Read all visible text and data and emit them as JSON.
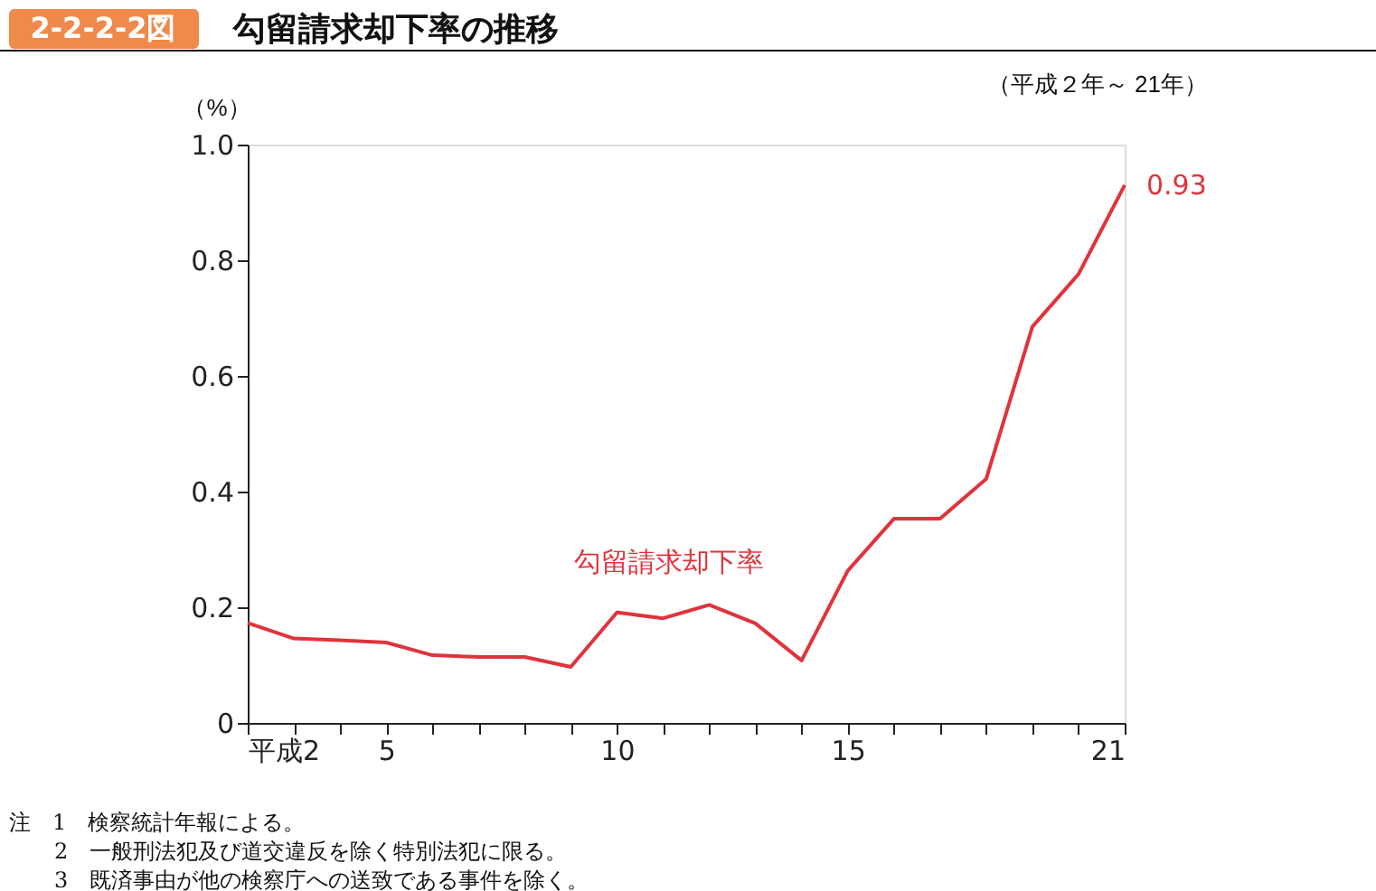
{
  "chart_data": {
    "type": "line",
    "title": "勾留請求却下率の推移",
    "subtitle": "（平成２年～ 21年）",
    "ylabel": "（%）",
    "annotations": [
      "2-2-2-2図",
      "注　1　検察統計年報による。",
      "2　一般刑法犯及び道交違反を除く特別法犯に限る。",
      "3　既済事由が他の検察庁への送致である事件を除く。"
    ],
    "x": [
      2,
      3,
      4,
      5,
      6,
      7,
      8,
      9,
      10,
      11,
      12,
      13,
      14,
      15,
      16,
      17,
      18,
      19,
      20,
      21
    ],
    "series": [
      {
        "name": "勾留請求却下率",
        "color": "#e0333c",
        "values": [
          0.173,
          0.146,
          0.143,
          0.139,
          0.117,
          0.114,
          0.114,
          0.097,
          0.191,
          0.181,
          0.204,
          0.172,
          0.108,
          0.263,
          0.353,
          0.353,
          0.422,
          0.685,
          0.776,
          0.93
        ],
        "value_labels": [
          null,
          null,
          null,
          null,
          null,
          null,
          null,
          null,
          null,
          null,
          null,
          null,
          null,
          null,
          null,
          null,
          null,
          null,
          null,
          "0.93"
        ]
      }
    ],
    "xlim": [
      2,
      21
    ],
    "xticks": [
      {
        "value": 2,
        "label": "平成2"
      },
      {
        "value": 3,
        "label": null
      },
      {
        "value": 4,
        "label": null
      },
      5,
      {
        "value": 6,
        "label": null
      },
      {
        "value": 7,
        "label": null
      },
      {
        "value": 8,
        "label": null
      },
      {
        "value": 9,
        "label": null
      },
      10,
      {
        "value": 11,
        "label": null
      },
      {
        "value": 12,
        "label": null
      },
      {
        "value": 13,
        "label": null
      },
      {
        "value": 14,
        "label": null
      },
      15,
      {
        "value": 16,
        "label": null
      },
      {
        "value": 17,
        "label": null
      },
      {
        "value": 18,
        "label": null
      },
      {
        "value": 19,
        "label": null
      },
      {
        "value": 20,
        "label": null
      },
      21
    ],
    "ylim": [
      0,
      1
    ],
    "yticks": [
      0,
      0.2,
      0.4,
      0.6,
      0.8,
      {
        "value": 1,
        "label": "1.0"
      }
    ],
    "grid": false,
    "marker": "none",
    "line_style": "solid"
  }
}
